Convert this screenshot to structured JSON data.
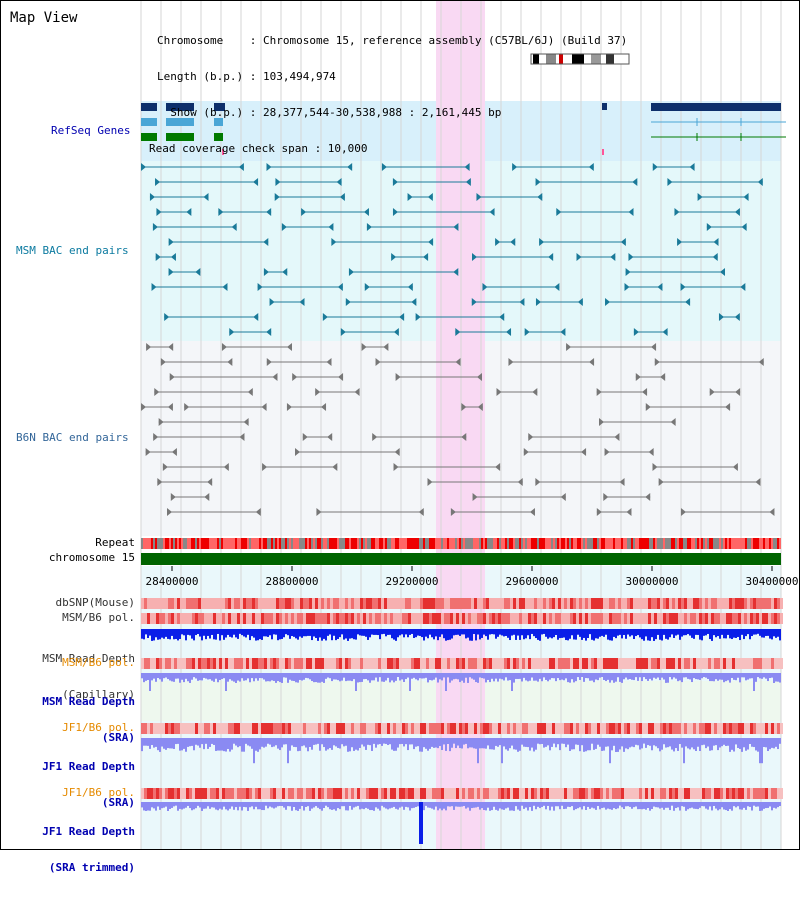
{
  "window": {
    "title": "Map View"
  },
  "info": {
    "chromosome": "Chromosome    : Chromosome 15, reference assembly (C57BL/6J) (Build 37)",
    "length": "Length (b.p.) : 103,494,974",
    "show": "  Show (b.p.) : 28,377,544-30,538,988 : 2,161,445 bp",
    "coverage": "Read coverage check span : 10,000"
  },
  "tracks": {
    "refseq": "RefSeq Genes",
    "msm_bac": "MSM BAC end pairs",
    "b6n_bac": "B6N BAC end pairs",
    "repeat": "Repeat",
    "chromosome": "chromosome 15",
    "dbsnp": "dbSNP(Mouse)",
    "msm_b6_pol": "MSM/B6 pol.",
    "msm_depth_cap_1": "MSM Read Depth",
    "msm_depth_cap_2": "(Capillary)",
    "msm_b6_pol_2": "MSM/B6 pol.",
    "msm_depth_sra_1": "MSM Read Depth",
    "msm_depth_sra_2": "(SRA)",
    "jf1_b6_pol": "JF1/B6 pol.",
    "jf1_depth_sra_1": "JF1 Read Depth",
    "jf1_depth_sra_2": "(SRA)",
    "jf1_b6_pol_2": "JF1/B6 pol.",
    "jf1_depth_trim_1": "JF1 Read Depth",
    "jf1_depth_trim_2": "(SRA trimmed)"
  },
  "axis": {
    "ticks": [
      "28400000",
      "28800000",
      "29200000",
      "29600000",
      "30000000",
      "30400000"
    ]
  },
  "colors": {
    "refseq_bg": "#d8f0fb",
    "bac_msm_bg": "#e4f8fa",
    "bac_b6n_bg": "#f4f6f9",
    "highlight": "#f9d9f3",
    "msm_label": "#0b7aa0",
    "b6n_label": "#336699",
    "orange_label": "#e58a00",
    "blue_label": "#0000b0",
    "gene_dark": "#0d2f6b",
    "gene_light": "#4aa6d6",
    "gene_green": "#007a00",
    "chromosome_bar": "#006400",
    "depth_dark": "#0a1ee8",
    "depth_light": "#8a8af2"
  }
}
